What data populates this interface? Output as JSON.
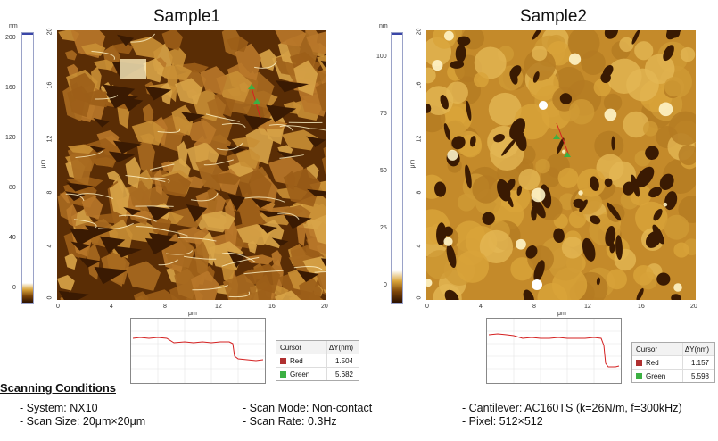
{
  "sample1": {
    "title": "Sample1",
    "unit_nm": "nm",
    "cbar_ticks": [
      "200",
      "160",
      "120",
      "80",
      "40",
      "0"
    ],
    "y_ticks": [
      "20",
      "16",
      "12",
      "8",
      "4",
      "0"
    ],
    "x_ticks": [
      "0",
      "4",
      "8",
      "12",
      "16",
      "20"
    ],
    "axis_unit": "μm",
    "cursor_table": {
      "header_cursor": "Cursor",
      "header_dy": "ΔY(nm)",
      "rows": [
        {
          "name": "Red",
          "value": "1.504",
          "color": "#b03030"
        },
        {
          "name": "Green",
          "value": "5.682",
          "color": "#3cb043"
        }
      ]
    }
  },
  "sample2": {
    "title": "Sample2",
    "unit_nm": "nm",
    "cbar_ticks": [
      "100",
      "75",
      "50",
      "25",
      "0"
    ],
    "y_ticks": [
      "20",
      "16",
      "12",
      "8",
      "4",
      "0"
    ],
    "x_ticks": [
      "0",
      "4",
      "8",
      "12",
      "16",
      "20"
    ],
    "axis_unit": "μm",
    "cursor_table": {
      "header_cursor": "Cursor",
      "header_dy": "ΔY(nm)",
      "rows": [
        {
          "name": "Red",
          "value": "1.157",
          "color": "#b03030"
        },
        {
          "name": "Green",
          "value": "5.598",
          "color": "#3cb043"
        }
      ]
    }
  },
  "conditions": {
    "heading": "Scanning Conditions",
    "items": [
      "- System: NX10",
      "- Scan Size: 20μm×20μm",
      "- Scan Mode: Non-contact",
      "- Scan Rate: 0.3Hz",
      "- Cantilever: AC160TS (k=26N/m, f=300kHz)",
      "- Pixel: 512×512"
    ]
  },
  "colors": {
    "afm_dark": "#3a1a02",
    "afm_mid": "#9a5c10",
    "afm_light": "#d9a43a",
    "afm_bright": "#fff4c8",
    "profile_line": "#d42020"
  }
}
